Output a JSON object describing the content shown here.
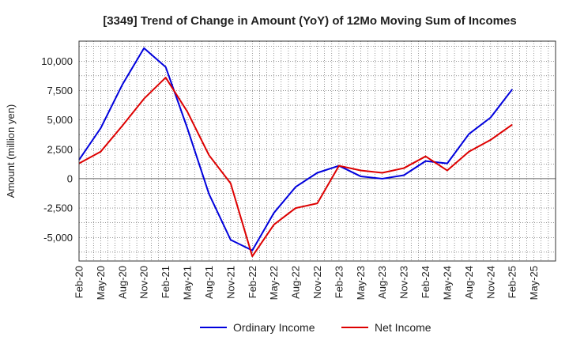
{
  "chart_data": {
    "type": "line",
    "title": "[3349]  Trend of Change in Amount (YoY) of 12Mo Moving Sum of Incomes",
    "xlabel": "",
    "ylabel": "Amount (million yen)",
    "x_ticks": [
      "Feb-20",
      "May-20",
      "Aug-20",
      "Nov-20",
      "Feb-21",
      "May-21",
      "Aug-21",
      "Nov-21",
      "Feb-22",
      "May-22",
      "Aug-22",
      "Nov-22",
      "Feb-23",
      "May-23",
      "Aug-23",
      "Nov-23",
      "Feb-24",
      "May-24",
      "Aug-24",
      "Nov-24",
      "Feb-25",
      "May-25"
    ],
    "y_ticks": [
      {
        "value": 10000,
        "label": "10,000"
      },
      {
        "value": 7500,
        "label": "7,500"
      },
      {
        "value": 5000,
        "label": "5,000"
      },
      {
        "value": 2500,
        "label": "2,500"
      },
      {
        "value": 0,
        "label": "0"
      },
      {
        "value": -2500,
        "label": "-2,500"
      },
      {
        "value": -5000,
        "label": "-5,000"
      }
    ],
    "ylim": [
      -7000,
      11700
    ],
    "grid": true,
    "legend_position": "bottom",
    "series": [
      {
        "name": "Ordinary Income",
        "color": "#0000dd",
        "values": [
          1600,
          4300,
          8000,
          11100,
          9500,
          4300,
          -1300,
          -5200,
          -6100,
          -2900,
          -700,
          500,
          1100,
          200,
          0,
          300,
          1500,
          1300,
          3800,
          5200,
          7600
        ]
      },
      {
        "name": "Net Income",
        "color": "#dd0000",
        "values": [
          1300,
          2300,
          4500,
          6800,
          8600,
          5700,
          2000,
          -400,
          -6600,
          -3900,
          -2500,
          -2100,
          1100,
          700,
          500,
          900,
          1900,
          700,
          2300,
          3300,
          4600
        ]
      }
    ]
  }
}
